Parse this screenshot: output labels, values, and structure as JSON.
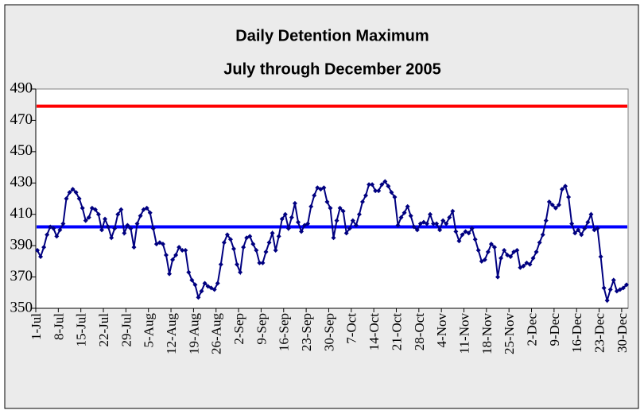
{
  "chart_data": {
    "type": "line",
    "title": "Daily Detention Maximum",
    "subtitle": "July through December 2005",
    "categories": [
      "1-Jul",
      null,
      null,
      null,
      null,
      null,
      null,
      "8-Jul",
      null,
      null,
      null,
      null,
      null,
      null,
      "15-Jul",
      null,
      null,
      null,
      null,
      null,
      null,
      "22-Jul",
      null,
      null,
      null,
      null,
      null,
      null,
      "29-Jul",
      null,
      null,
      null,
      null,
      null,
      null,
      "5-Aug",
      null,
      null,
      null,
      null,
      null,
      null,
      "12-Aug",
      null,
      null,
      null,
      null,
      null,
      null,
      "19-Aug",
      null,
      null,
      null,
      null,
      null,
      null,
      "26-Aug",
      null,
      null,
      null,
      null,
      null,
      null,
      "2-Sep",
      null,
      null,
      null,
      null,
      null,
      null,
      "9-Sep",
      null,
      null,
      null,
      null,
      null,
      null,
      "16-Sep",
      null,
      null,
      null,
      null,
      null,
      null,
      "23-Sep",
      null,
      null,
      null,
      null,
      null,
      null,
      "30-Sep",
      null,
      null,
      null,
      null,
      null,
      null,
      "7-Oct",
      null,
      null,
      null,
      null,
      null,
      null,
      "14-Oct",
      null,
      null,
      null,
      null,
      null,
      null,
      "21-Oct",
      null,
      null,
      null,
      null,
      null,
      null,
      "28-Oct",
      null,
      null,
      null,
      null,
      null,
      null,
      "4-Nov",
      null,
      null,
      null,
      null,
      null,
      null,
      "11-Nov",
      null,
      null,
      null,
      null,
      null,
      null,
      "18-Nov",
      null,
      null,
      null,
      null,
      null,
      null,
      "25-Nov",
      null,
      null,
      null,
      null,
      null,
      null,
      "2-Dec",
      null,
      null,
      null,
      null,
      null,
      null,
      "9-Dec",
      null,
      null,
      null,
      null,
      null,
      null,
      "16-Dec",
      null,
      null,
      null,
      null,
      null,
      null,
      "23-Dec",
      null,
      null,
      null,
      null,
      null,
      null,
      "30-Dec",
      null
    ],
    "series": [
      {
        "color": "#000080",
        "values": [
          387,
          383,
          389,
          397,
          402,
          401,
          396,
          400,
          404,
          420,
          424,
          426,
          424,
          420,
          414,
          406,
          408,
          414,
          413,
          410,
          400,
          407,
          402,
          395,
          401,
          410,
          413,
          398,
          403,
          401,
          389,
          404,
          409,
          413,
          414,
          411,
          401,
          391,
          392,
          391,
          384,
          372,
          381,
          384,
          389,
          387,
          387,
          373,
          368,
          365,
          357,
          361,
          366,
          364,
          363,
          362,
          366,
          378,
          392,
          397,
          394,
          388,
          378,
          373,
          389,
          395,
          396,
          391,
          387,
          379,
          379,
          386,
          392,
          398,
          387,
          396,
          407,
          410,
          401,
          408,
          417,
          405,
          399,
          403,
          404,
          415,
          422,
          427,
          426,
          427,
          418,
          414,
          395,
          406,
          414,
          412,
          398,
          401,
          406,
          403,
          410,
          418,
          422,
          429,
          429,
          425,
          425,
          429,
          431,
          428,
          424,
          421,
          403,
          408,
          411,
          415,
          409,
          402,
          400,
          404,
          405,
          404,
          410,
          404,
          404,
          400,
          406,
          404,
          408,
          412,
          399,
          393,
          397,
          399,
          398,
          401,
          394,
          387,
          380,
          381,
          386,
          391,
          389,
          370,
          382,
          387,
          384,
          383,
          386,
          387,
          376,
          377,
          379,
          378,
          382,
          386,
          392,
          397,
          406,
          418,
          416,
          414,
          416,
          426,
          428,
          421,
          404,
          398,
          400,
          397,
          401,
          405,
          410,
          400,
          401,
          383,
          363,
          355,
          362,
          368,
          361,
          362,
          363,
          365
        ]
      }
    ],
    "reference_lines": [
      {
        "value": 479,
        "color": "#ff0000"
      },
      {
        "value": 402,
        "color": "#0000ff"
      }
    ],
    "ylim": [
      350,
      490
    ],
    "yticks": [
      350,
      370,
      390,
      410,
      430,
      450,
      470,
      490
    ],
    "grid": false
  }
}
